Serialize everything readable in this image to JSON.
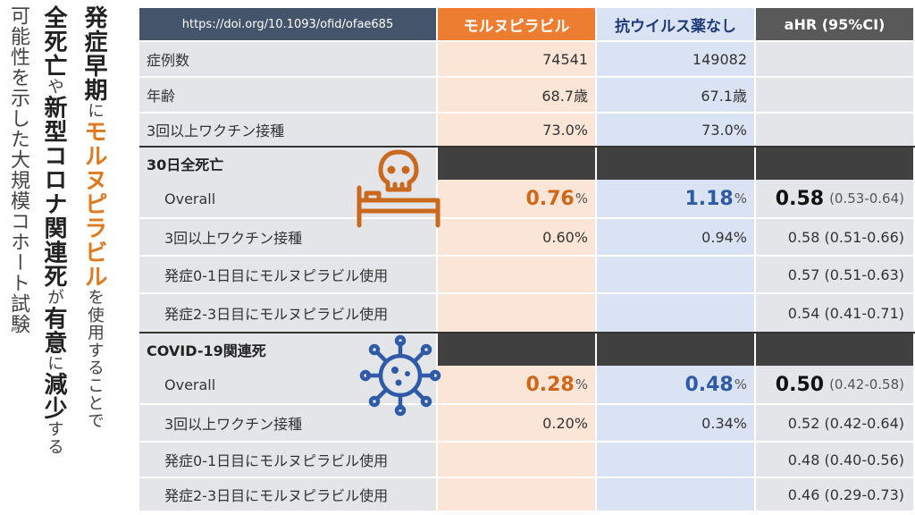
{
  "headline": {
    "col1": [
      {
        "t": "発症早期",
        "cls": "b"
      },
      {
        "t": "に",
        "cls": "s"
      },
      {
        "t": "モルヌピラビル",
        "cls": "o"
      },
      {
        "t": "を使用することで",
        "cls": "s"
      }
    ],
    "col2": [
      {
        "t": "全死亡",
        "cls": "b"
      },
      {
        "t": "や",
        "cls": "s"
      },
      {
        "t": "新型コロナ関連死",
        "cls": "b"
      },
      {
        "t": "が",
        "cls": "s"
      },
      {
        "t": "有意",
        "cls": "b"
      },
      {
        "t": "に",
        "cls": "s"
      },
      {
        "t": "減少",
        "cls": "b"
      },
      {
        "t": "する",
        "cls": "s"
      }
    ],
    "col3": "可能性を示した大規模コホート試験"
  },
  "header": {
    "doi": "https://doi.org/10.1093/ofid/ofae685",
    "col1": "モルヌピラビル",
    "col2": "抗ウイルス薬なし",
    "col3": "aHR (95%CI)"
  },
  "rows": {
    "cases": {
      "label": "症例数",
      "v1": "74541",
      "v2": "149082",
      "v3": ""
    },
    "age": {
      "label": "年齢",
      "v1": "68.7歳",
      "v2": "67.1歳",
      "v3": ""
    },
    "vax": {
      "label": "3回以上ワクチン接種",
      "v1": "73.0%",
      "v2": "73.0%",
      "v3": ""
    }
  },
  "section1": {
    "title": "30日全死亡",
    "overall": {
      "label": "Overall",
      "v1": "0.76",
      "v2": "1.18",
      "pct": "%",
      "hr": "0.58",
      "ci": "(0.53-0.64)"
    },
    "vax": {
      "label": "3回以上ワクチン接種",
      "v1": "0.60%",
      "v2": "0.94%",
      "v3": "0.58 (0.51-0.66)"
    },
    "d01": {
      "label": "発症0-1日目にモルヌピラビル使用",
      "v3": "0.57 (0.51-0.63)"
    },
    "d23": {
      "label": "発症2-3日目にモルヌピラビル使用",
      "v3": "0.54 (0.41-0.71)"
    }
  },
  "section2": {
    "title": "COVID-19関連死",
    "overall": {
      "label": "Overall",
      "v1": "0.28",
      "v2": "0.48",
      "pct": "%",
      "hr": "0.50",
      "ci": "(0.42-0.58)"
    },
    "vax": {
      "label": "3回以上ワクチン接種",
      "v1": "0.20%",
      "v2": "0.34%",
      "v3": "0.52 (0.42-0.64)"
    },
    "d01": {
      "label": "発症0-1日目にモルヌピラビル使用",
      "v3": "0.48 (0.40-0.56)"
    },
    "d23": {
      "label": "発症2-3日目にモルヌピラビル使用",
      "v3": "0.46 (0.29-0.73)"
    }
  },
  "icons": {
    "death": "skull-bed-icon",
    "virus": "virus-icon"
  },
  "colors": {
    "orange": "#ed7d31",
    "blue": "#2e5aa8",
    "header_dark": "#44546a"
  }
}
